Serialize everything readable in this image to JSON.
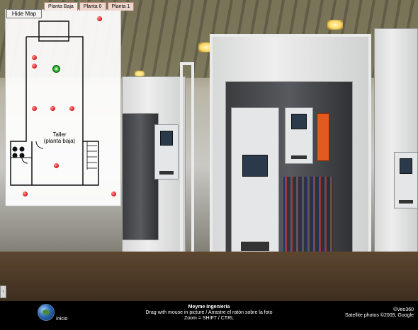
{
  "map": {
    "hide_button": "Hide Map",
    "tabs": [
      {
        "label": "Planta Baja",
        "active": true
      },
      {
        "label": "Planta 0",
        "active": false
      },
      {
        "label": "Planta 1",
        "active": false
      }
    ],
    "area_label_line1": "Taller",
    "area_label_line2": "(planta baja)",
    "hotspot_color": "#e02020",
    "current_hotspot_color": "#38c038"
  },
  "side_toggle_icon": "‹",
  "footer": {
    "home_label": "Inicio",
    "company": "Meyme Ingeniería",
    "instructions": "Drag with mouse in picture / Arrastre el ratón sobre la foto",
    "zoom_hint": "Zoom = SHIFT / CTRL",
    "credit": "©Veo360",
    "satellite_credit": "Satellite photos ©2009, Google"
  }
}
